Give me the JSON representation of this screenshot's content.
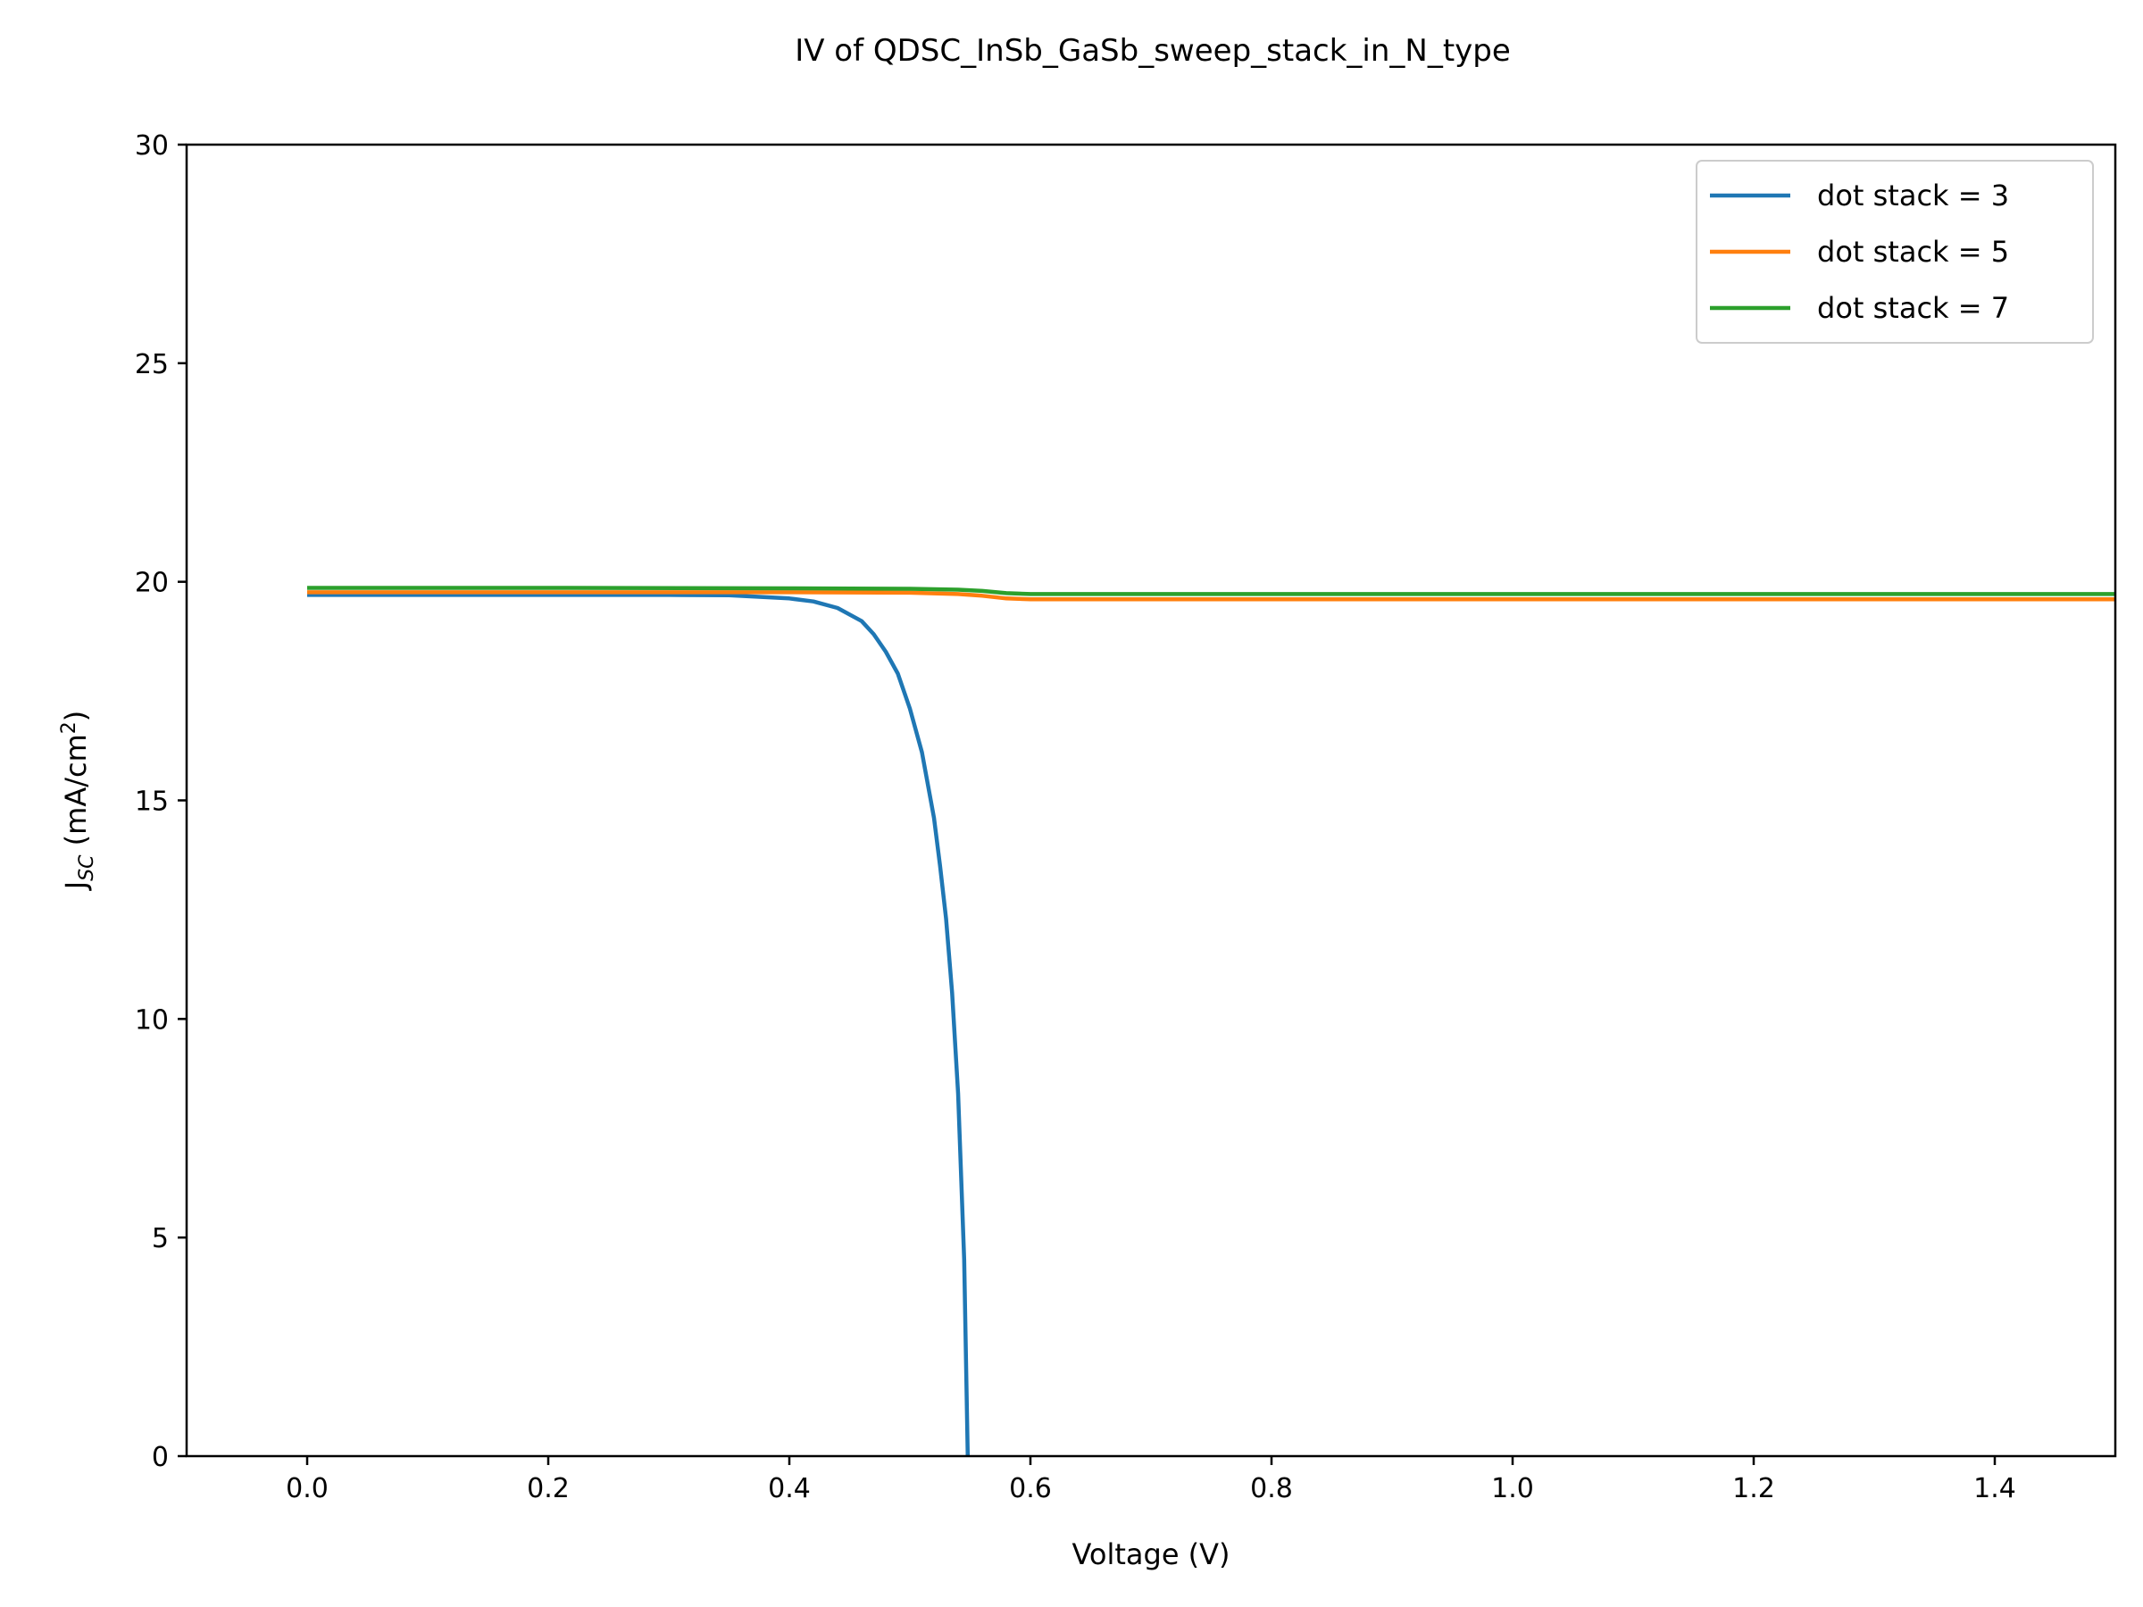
{
  "chart_data": {
    "type": "line",
    "title": "IV of QDSC_InSb_GaSb_sweep_stack_in_N_type",
    "xlabel": "Voltage (V)",
    "ylabel": {
      "main": "J",
      "sub": "SC",
      "unit_prefix": " (mA/cm",
      "unit_sup": "2",
      "unit_suffix": ")"
    },
    "xlim": [
      -0.1,
      1.5
    ],
    "ylim": [
      0,
      30
    ],
    "xticks": [
      0.0,
      0.2,
      0.4,
      0.6,
      0.8,
      1.0,
      1.2,
      1.4
    ],
    "xtick_labels": [
      "0.0",
      "0.2",
      "0.4",
      "0.6",
      "0.8",
      "1.0",
      "1.2",
      "1.4"
    ],
    "yticks": [
      0,
      5,
      10,
      15,
      20,
      25,
      30
    ],
    "ytick_labels": [
      "0",
      "5",
      "10",
      "15",
      "20",
      "25",
      "30"
    ],
    "grid": false,
    "legend_position": "top-right",
    "series": [
      {
        "name": "dot stack = 3",
        "color": "#1f77b4",
        "points": [
          [
            0.0,
            19.7
          ],
          [
            0.1,
            19.7
          ],
          [
            0.2,
            19.7
          ],
          [
            0.3,
            19.7
          ],
          [
            0.35,
            19.69
          ],
          [
            0.4,
            19.62
          ],
          [
            0.42,
            19.55
          ],
          [
            0.44,
            19.4
          ],
          [
            0.46,
            19.1
          ],
          [
            0.47,
            18.8
          ],
          [
            0.48,
            18.4
          ],
          [
            0.49,
            17.9
          ],
          [
            0.5,
            17.1
          ],
          [
            0.51,
            16.1
          ],
          [
            0.52,
            14.6
          ],
          [
            0.525,
            13.5
          ],
          [
            0.53,
            12.3
          ],
          [
            0.535,
            10.6
          ],
          [
            0.54,
            8.3
          ],
          [
            0.545,
            4.5
          ],
          [
            0.548,
            0.0
          ]
        ]
      },
      {
        "name": "dot stack = 5",
        "color": "#ff7f0e",
        "points": [
          [
            0.0,
            19.76
          ],
          [
            0.2,
            19.76
          ],
          [
            0.4,
            19.76
          ],
          [
            0.5,
            19.75
          ],
          [
            0.54,
            19.72
          ],
          [
            0.56,
            19.68
          ],
          [
            0.58,
            19.62
          ],
          [
            0.6,
            19.6
          ],
          [
            0.8,
            19.6
          ],
          [
            1.0,
            19.6
          ],
          [
            1.2,
            19.6
          ],
          [
            1.5,
            19.6
          ]
        ]
      },
      {
        "name": "dot stack = 7",
        "color": "#2ca02c",
        "points": [
          [
            0.0,
            19.86
          ],
          [
            0.2,
            19.86
          ],
          [
            0.4,
            19.85
          ],
          [
            0.5,
            19.84
          ],
          [
            0.54,
            19.82
          ],
          [
            0.56,
            19.79
          ],
          [
            0.58,
            19.74
          ],
          [
            0.6,
            19.72
          ],
          [
            0.8,
            19.72
          ],
          [
            1.0,
            19.72
          ],
          [
            1.2,
            19.72
          ],
          [
            1.5,
            19.72
          ]
        ]
      }
    ]
  }
}
